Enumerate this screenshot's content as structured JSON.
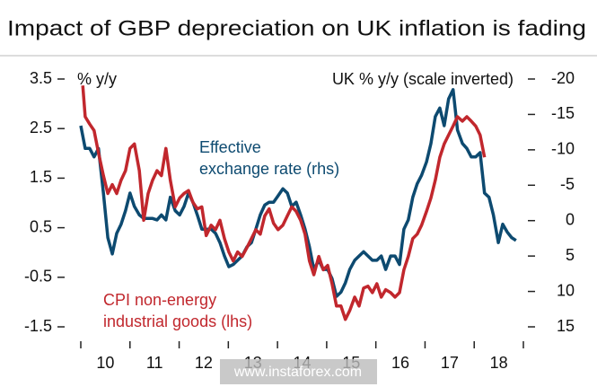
{
  "chart_data": {
    "type": "line",
    "title": "Impact of GBP depreciation on UK inflation is fading",
    "ylabel": "% y/y",
    "y2label": "UK   % y/y (scale inverted)",
    "watermark": "www.instaforex.com",
    "annotations": [
      {
        "lines": [
          "Effective",
          "exchange rate (rhs)"
        ],
        "color": "#0d4a70"
      },
      {
        "lines": [
          "CPI non-energy",
          "industrial goods (lhs)"
        ],
        "color": "#c1272d"
      }
    ],
    "xlim": [
      10,
      19
    ],
    "xticks": [
      10,
      11,
      12,
      13,
      14,
      15,
      16,
      17,
      18
    ],
    "ylim": [
      -1.5,
      3.5
    ],
    "yticks": [
      3.5,
      2.5,
      1.5,
      0.5,
      -0.5,
      -1.5
    ],
    "y2lim": [
      -20,
      15
    ],
    "y2ticks": [
      -20,
      -15,
      -10,
      -5,
      0,
      5,
      10,
      15
    ],
    "y2_inverted": true,
    "series": [
      {
        "name": "CPI non-energy industrial goods (lhs)",
        "color": "#c1272d",
        "x": [
          10.04,
          10.09,
          10.18,
          10.27,
          10.36,
          10.46,
          10.55,
          10.64,
          10.73,
          10.82,
          10.91,
          11.0,
          11.09,
          11.19,
          11.28,
          11.37,
          11.46,
          11.55,
          11.64,
          11.73,
          11.82,
          11.92,
          12.01,
          12.1,
          12.19,
          12.28,
          12.37,
          12.46,
          12.55,
          12.65,
          12.74,
          12.83,
          12.92,
          13.01,
          13.1,
          13.19,
          13.28,
          13.38,
          13.47,
          13.56,
          13.65,
          13.74,
          13.83,
          13.92,
          14.01,
          14.11,
          14.2,
          14.29,
          14.38,
          14.47,
          14.56,
          14.65,
          14.74,
          14.84,
          14.93,
          15.02,
          15.11,
          15.2,
          15.29,
          15.38,
          15.47,
          15.57,
          15.66,
          15.75,
          15.84,
          15.93,
          16.02,
          16.11,
          16.2,
          16.3,
          16.39,
          16.48,
          16.57,
          16.66,
          16.75,
          16.84,
          16.93,
          17.03,
          17.12,
          17.21,
          17.3,
          17.39,
          17.48,
          17.57,
          17.66,
          17.76,
          17.85,
          17.94,
          18.03,
          18.12,
          18.21
        ],
        "values": [
          3.37,
          2.74,
          2.59,
          2.46,
          2.01,
          1.55,
          1.19,
          1.37,
          1.19,
          1.46,
          1.65,
          2.1,
          2.19,
          1.65,
          0.65,
          1.19,
          1.46,
          1.65,
          1.55,
          2.1,
          1.46,
          0.92,
          1.1,
          1.19,
          1.25,
          1.01,
          0.88,
          0.92,
          0.34,
          0.55,
          0.46,
          0.65,
          0.28,
          0.01,
          -0.17,
          0.01,
          -0.08,
          0.1,
          0.28,
          0.46,
          0.37,
          0.74,
          0.88,
          0.59,
          0.46,
          0.55,
          0.74,
          0.92,
          0.83,
          0.65,
          0.37,
          -0.17,
          -0.45,
          -0.08,
          -0.35,
          -0.26,
          -0.63,
          -1.08,
          -1.08,
          -1.35,
          -1.17,
          -0.9,
          -1.08,
          -0.72,
          -0.68,
          -0.81,
          -0.63,
          -0.9,
          -0.75,
          -0.81,
          -0.9,
          -0.81,
          -0.35,
          -0.08,
          0.28,
          0.37,
          0.55,
          0.83,
          1.1,
          1.46,
          1.92,
          2.19,
          2.37,
          2.55,
          2.74,
          2.65,
          2.74,
          2.65,
          2.55,
          2.37,
          1.92
        ]
      },
      {
        "name": "Effective exchange rate (rhs)",
        "color": "#0d4a70",
        "axis": "y2",
        "x": [
          10.0,
          10.09,
          10.18,
          10.27,
          10.36,
          10.46,
          10.55,
          10.64,
          10.73,
          10.82,
          10.91,
          11.0,
          11.09,
          11.19,
          11.28,
          11.37,
          11.46,
          11.55,
          11.64,
          11.73,
          11.82,
          11.92,
          12.01,
          12.1,
          12.19,
          12.28,
          12.37,
          12.46,
          12.55,
          12.65,
          12.74,
          12.83,
          12.92,
          13.01,
          13.1,
          13.19,
          13.28,
          13.38,
          13.47,
          13.56,
          13.65,
          13.74,
          13.83,
          13.92,
          14.01,
          14.11,
          14.2,
          14.29,
          14.38,
          14.47,
          14.56,
          14.65,
          14.74,
          14.84,
          14.93,
          15.02,
          15.11,
          15.2,
          15.29,
          15.38,
          15.47,
          15.57,
          15.66,
          15.75,
          15.84,
          15.93,
          16.02,
          16.11,
          16.2,
          16.3,
          16.39,
          16.48,
          16.57,
          16.66,
          16.75,
          16.84,
          16.93,
          17.03,
          17.12,
          17.21,
          17.3,
          17.39,
          17.48,
          17.57,
          17.66,
          17.76,
          17.85,
          17.94,
          18.03,
          18.12,
          18.21,
          18.3,
          18.39,
          18.49,
          18.58,
          18.67,
          18.76,
          18.85
        ],
        "values": [
          -13.4,
          -10.2,
          -10.2,
          -9.0,
          -10.2,
          -3.9,
          2.4,
          4.7,
          1.8,
          0.5,
          -1.4,
          -3.9,
          -2.0,
          -0.8,
          -0.3,
          -0.3,
          -0.3,
          -0.1,
          -0.8,
          -0.1,
          -3.3,
          -1.4,
          -0.8,
          -2.0,
          -3.9,
          -2.6,
          -0.8,
          1.2,
          1.2,
          1.2,
          1.8,
          3.1,
          5.0,
          6.5,
          6.2,
          5.6,
          5.0,
          3.7,
          3.1,
          1.2,
          -0.8,
          -2.2,
          -2.6,
          -2.6,
          -3.5,
          -4.5,
          -3.9,
          -2.0,
          -2.6,
          -0.8,
          1.2,
          3.7,
          6.9,
          5.6,
          6.9,
          6.9,
          8.2,
          10.7,
          10.1,
          8.8,
          6.9,
          5.6,
          5.0,
          4.4,
          5.0,
          5.6,
          5.6,
          5.0,
          6.9,
          5.0,
          5.0,
          6.2,
          1.2,
          -0.1,
          -3.3,
          -5.2,
          -6.4,
          -8.3,
          -10.9,
          -14.7,
          -15.9,
          -13.4,
          -17.2,
          -18.5,
          -12.8,
          -10.9,
          -10.2,
          -9.0,
          -9.0,
          -9.6,
          -3.9,
          -3.3,
          -0.8,
          3.1,
          0.5,
          1.6,
          2.4,
          2.8
        ]
      }
    ]
  }
}
